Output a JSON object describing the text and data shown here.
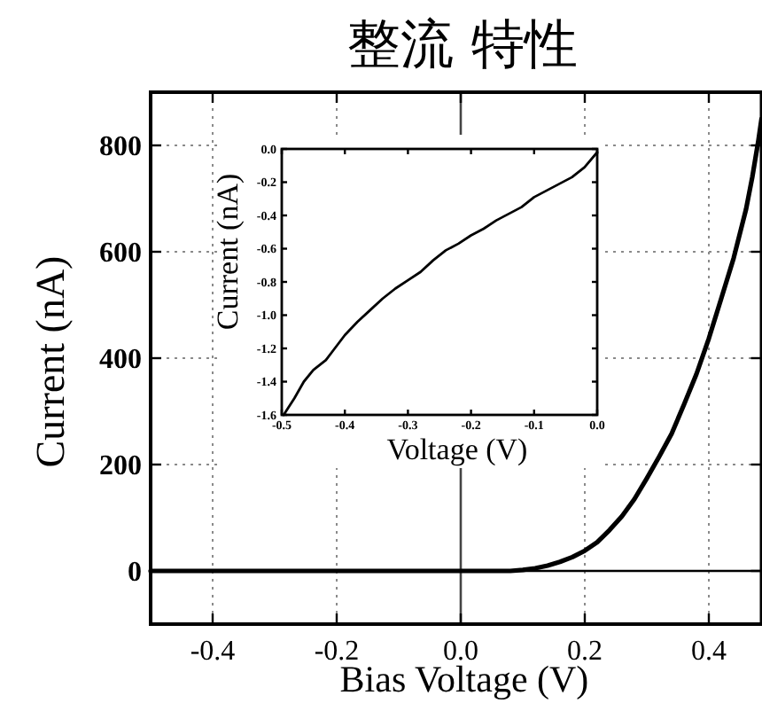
{
  "chart_data": [
    {
      "type": "line",
      "title": "整流 特性",
      "xlabel": "Bias Voltage (V)",
      "ylabel": "Current (nA)",
      "x": [
        -0.5,
        0.0,
        0.08,
        0.1,
        0.12,
        0.14,
        0.16,
        0.18,
        0.2,
        0.22,
        0.24,
        0.26,
        0.28,
        0.3,
        0.32,
        0.34,
        0.36,
        0.38,
        0.4,
        0.42,
        0.44,
        0.46,
        0.47,
        0.48,
        0.485
      ],
      "series": [
        {
          "color": "#000000",
          "values": [
            0,
            0,
            0,
            2,
            5,
            10,
            17,
            26,
            38,
            54,
            77,
            103,
            135,
            174,
            215,
            258,
            313,
            370,
            437,
            512,
            588,
            680,
            740,
            810,
            850
          ]
        }
      ],
      "xlim": [
        -0.5,
        0.485
      ],
      "ylim": [
        -100,
        900
      ],
      "xticks": [
        -0.4,
        -0.2,
        {
          "value": 0,
          "label": "0.0"
        },
        0.2,
        0.4
      ],
      "yticks": [
        0,
        200,
        400,
        600,
        800
      ],
      "grid": true,
      "ref_lines": [
        {
          "axis": "y",
          "value": 0,
          "color": "#000000"
        },
        {
          "axis": "x",
          "value": 0,
          "color": "#444444"
        }
      ]
    },
    {
      "type": "line",
      "xlabel": "Voltage (V)",
      "ylabel": "Current (nA)",
      "x": [
        -0.497,
        -0.48,
        -0.465,
        -0.45,
        -0.43,
        -0.42,
        -0.4,
        -0.38,
        -0.36,
        -0.34,
        -0.32,
        -0.3,
        -0.28,
        -0.26,
        -0.24,
        -0.22,
        -0.2,
        -0.18,
        -0.16,
        -0.14,
        -0.12,
        -0.1,
        -0.08,
        -0.06,
        -0.04,
        -0.02,
        0.0
      ],
      "series": [
        {
          "color": "#000000",
          "values": [
            -1.6,
            -1.5,
            -1.4,
            -1.33,
            -1.27,
            -1.22,
            -1.12,
            -1.04,
            -0.97,
            -0.9,
            -0.84,
            -0.79,
            -0.74,
            -0.67,
            -0.61,
            -0.57,
            -0.52,
            -0.48,
            -0.43,
            -0.39,
            -0.35,
            -0.29,
            -0.25,
            -0.21,
            -0.17,
            -0.11,
            -0.02
          ]
        }
      ],
      "xlim": [
        -0.5,
        0
      ],
      "ylim": [
        -1.6,
        0
      ],
      "xticks": [
        -0.5,
        -0.4,
        -0.3,
        -0.2,
        -0.1,
        {
          "value": 0,
          "label": "0.0"
        }
      ],
      "yticks": [
        {
          "value": 0,
          "label": "0.0"
        },
        -0.2,
        -0.4,
        -0.6,
        -0.8,
        {
          "value": -1,
          "label": "-1.0"
        },
        -1.2,
        -1.4,
        -1.6
      ]
    }
  ]
}
